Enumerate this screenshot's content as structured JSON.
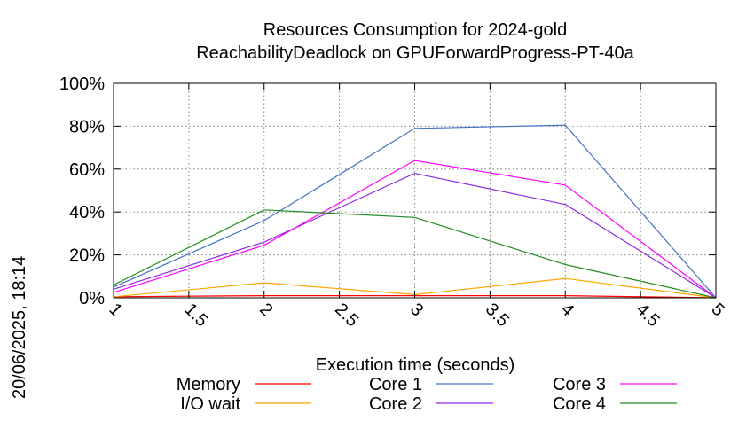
{
  "chart_data": {
    "type": "line",
    "title": "Resources Consumption for 2024-gold",
    "subtitle": "ReachabilityDeadlock on GPUForwardProgress-PT-40a",
    "xlabel": "Execution time (seconds)",
    "ylabel": "",
    "xlim": [
      1,
      5
    ],
    "ylim": [
      0,
      100
    ],
    "x_ticks": [
      "1",
      "1.5",
      "2",
      "2.5",
      "3",
      "3.5",
      "4",
      "4.5",
      "5"
    ],
    "y_ticks": [
      "0%",
      "20%",
      "40%",
      "60%",
      "80%",
      "100%"
    ],
    "grid": true,
    "legend_position": "bottom",
    "x": [
      1,
      2,
      3,
      4,
      5
    ],
    "series": [
      {
        "name": "Memory",
        "color": "#ff0000",
        "values": [
          0.5,
          1,
          1,
          1,
          0
        ]
      },
      {
        "name": "I/O wait",
        "color": "#ffa500",
        "values": [
          0.5,
          7,
          1.5,
          9,
          0
        ]
      },
      {
        "name": "Core 1",
        "color": "#4472c4",
        "values": [
          5,
          36,
          79,
          80.5,
          0
        ]
      },
      {
        "name": "Core 2",
        "color": "#8a2be2",
        "values": [
          4,
          26,
          58,
          43.5,
          0
        ]
      },
      {
        "name": "Core 3",
        "color": "#ff00ff",
        "values": [
          2.5,
          24.5,
          64,
          52.5,
          0
        ]
      },
      {
        "name": "Core 4",
        "color": "#228b22",
        "values": [
          6,
          41,
          37.5,
          15.5,
          0
        ]
      }
    ]
  },
  "timestamp": "20/06/2025, 18:14"
}
